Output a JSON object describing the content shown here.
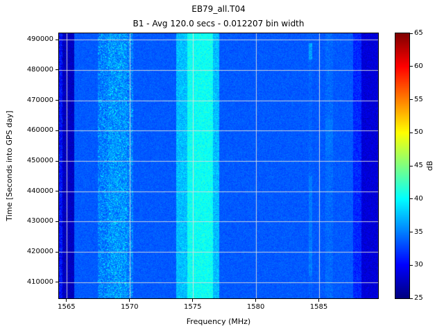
{
  "chart_data": {
    "type": "heatmap",
    "title": "EB79_all.T04",
    "subtitle": "B1 - Avg 120.0 secs - 0.012207 bin width",
    "xlabel": "Frequency (MHz)",
    "ylabel": "Time [Seconds into GPS day]",
    "colorbar_label": "dB",
    "colormap": "jet",
    "xlim": [
      1564.4,
      1589.7
    ],
    "ylim": [
      404700,
      492100
    ],
    "clim": [
      25,
      65
    ],
    "xticks": [
      1565,
      1570,
      1575,
      1580,
      1585
    ],
    "yticks": [
      410000,
      420000,
      430000,
      440000,
      450000,
      460000,
      470000,
      480000,
      490000
    ],
    "colorbar_ticks": [
      25,
      30,
      35,
      40,
      45,
      50,
      55,
      60,
      65
    ],
    "grid": true,
    "grid_color": "#dcdcdc",
    "background_db": 33.5,
    "noise_db": 0.8,
    "bands": [
      {
        "name": "left-edge-low",
        "f_start": 1564.4,
        "f_end": 1565.6,
        "db": 27.5,
        "noise": 1.0
      },
      {
        "name": "noise-band-1568-1570",
        "f_start": 1567.5,
        "f_end": 1570.3,
        "db": 34.5,
        "noise": 1.6,
        "speckle": true
      },
      {
        "name": "noise-band-core-1569",
        "f_start": 1568.3,
        "f_end": 1569.8,
        "db": 35.3,
        "noise": 1.8,
        "speckle": true
      },
      {
        "name": "signal-band-outer",
        "f_start": 1573.7,
        "f_end": 1577.1,
        "db": 37.5,
        "noise": 1.5
      },
      {
        "name": "signal-band-core",
        "f_start": 1574.6,
        "f_end": 1576.6,
        "db": 40.5,
        "noise": 1.3
      },
      {
        "name": "narrow-line-1584",
        "f_start": 1584.2,
        "f_end": 1584.5,
        "db": 33.9,
        "noise": 1.0
      },
      {
        "name": "faint-band-1586",
        "f_start": 1585.5,
        "f_end": 1586.1,
        "db": 34.1,
        "noise": 1.0
      },
      {
        "name": "right-transition",
        "f_start": 1587.7,
        "f_end": 1588.4,
        "db": 31.5,
        "noise": 1.2
      },
      {
        "name": "right-edge-low",
        "f_start": 1588.4,
        "f_end": 1589.7,
        "db": 28.5,
        "noise": 1.0
      }
    ],
    "segments": [
      {
        "name": "left-edge-speckle",
        "f_start": 1564.4,
        "f_end": 1564.7,
        "t_start": 404700,
        "t_end": 492100,
        "db": 30.5,
        "noise": 2.2
      },
      {
        "name": "line-1584-top-blob",
        "f_start": 1584.2,
        "f_end": 1584.5,
        "t_start": 483500,
        "t_end": 489000,
        "db": 36.5,
        "noise": 1.3
      },
      {
        "name": "line-1584-low-part",
        "f_start": 1584.2,
        "f_end": 1584.5,
        "t_start": 412000,
        "t_end": 445000,
        "db": 34.8,
        "noise": 1.0
      },
      {
        "name": "patch-1586-mid",
        "f_start": 1585.5,
        "f_end": 1586.1,
        "t_start": 452000,
        "t_end": 464000,
        "db": 34.6,
        "noise": 0.9
      }
    ]
  }
}
